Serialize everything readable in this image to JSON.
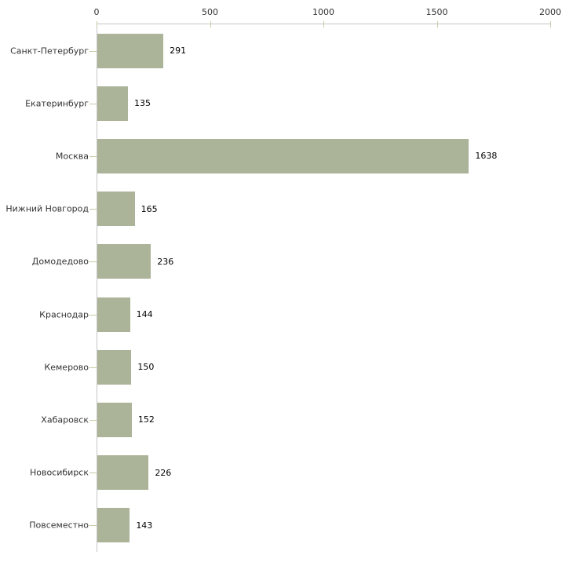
{
  "chart_data": {
    "type": "bar",
    "orientation": "horizontal",
    "title": "",
    "xlabel": "",
    "ylabel": "",
    "categories": [
      "Санкт-Петербург",
      "Екатеринбург",
      "Москва",
      "Нижний Новгород",
      "Домодедово",
      "Краснодар",
      "Кемерово",
      "Хабаровск",
      "Новосибирск",
      "Повсеместно"
    ],
    "values": [
      291,
      135,
      1638,
      165,
      236,
      144,
      150,
      152,
      226,
      143
    ],
    "x_ticks": [
      0,
      500,
      1000,
      1500,
      2000
    ],
    "xlim": [
      0,
      2000
    ],
    "grid": false,
    "legend": false,
    "axis_position": "top",
    "colors": {
      "bar": "#abb398",
      "axis": "#c6c6c6",
      "tick": "#c9c9a3",
      "label": "#333333",
      "value": "#000000",
      "background": "#ffffff"
    }
  }
}
